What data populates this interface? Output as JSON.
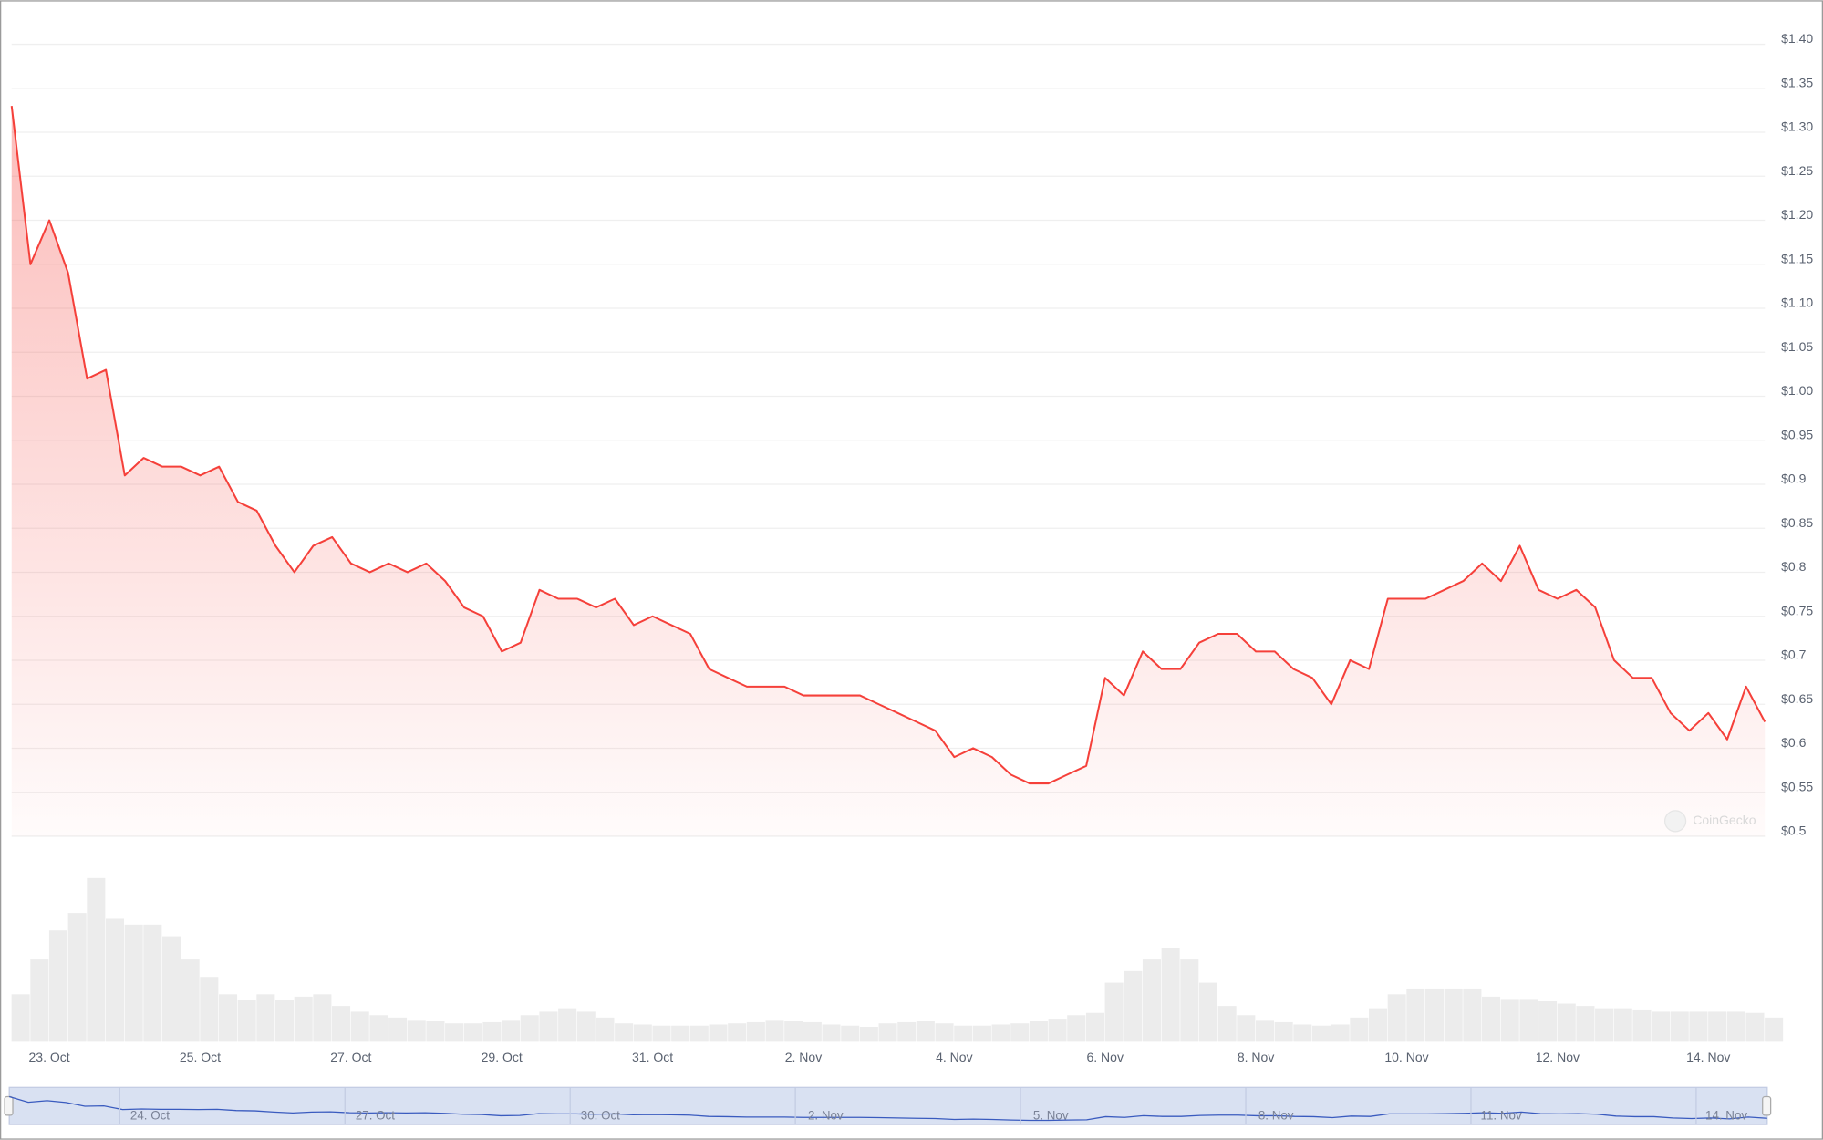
{
  "chart_data": {
    "type": "line",
    "color": "#f5403a",
    "volume_color": "#ececec",
    "navigator_color": "#3a5bbf",
    "watermark": "CoinGecko",
    "grid": true,
    "ylim": [
      0.5,
      1.45
    ],
    "yticks": [
      {
        "value": 1.4,
        "label": "$1.40"
      },
      {
        "value": 1.35,
        "label": "$1.35"
      },
      {
        "value": 1.3,
        "label": "$1.30"
      },
      {
        "value": 1.25,
        "label": "$1.25"
      },
      {
        "value": 1.2,
        "label": "$1.20"
      },
      {
        "value": 1.15,
        "label": "$1.15"
      },
      {
        "value": 1.1,
        "label": "$1.10"
      },
      {
        "value": 1.05,
        "label": "$1.05"
      },
      {
        "value": 1.0,
        "label": "$1.00"
      },
      {
        "value": 0.95,
        "label": "$0.95"
      },
      {
        "value": 0.9,
        "label": "$0.9"
      },
      {
        "value": 0.85,
        "label": "$0.85"
      },
      {
        "value": 0.8,
        "label": "$0.8"
      },
      {
        "value": 0.75,
        "label": "$0.75"
      },
      {
        "value": 0.7,
        "label": "$0.7"
      },
      {
        "value": 0.65,
        "label": "$0.65"
      },
      {
        "value": 0.6,
        "label": "$0.6"
      },
      {
        "value": 0.55,
        "label": "$0.55"
      },
      {
        "value": 0.5,
        "label": "$0.5"
      }
    ],
    "categories": [
      null,
      null,
      "23. Oct",
      null,
      null,
      null,
      null,
      null,
      null,
      null,
      "25. Oct",
      null,
      null,
      null,
      null,
      null,
      null,
      null,
      "27. Oct",
      null,
      null,
      null,
      null,
      null,
      null,
      null,
      "29. Oct",
      null,
      null,
      null,
      null,
      null,
      null,
      null,
      "31. Oct",
      null,
      null,
      null,
      null,
      null,
      null,
      null,
      "2. Nov",
      null,
      null,
      null,
      null,
      null,
      null,
      null,
      "4. Nov",
      null,
      null,
      null,
      null,
      null,
      null,
      null,
      "6. Nov",
      null,
      null,
      null,
      null,
      null,
      null,
      null,
      "8. Nov",
      null,
      null,
      null,
      null,
      null,
      null,
      null,
      "10. Nov",
      null,
      null,
      null,
      null,
      null,
      null,
      null,
      "12. Nov",
      null,
      null,
      null,
      null,
      null,
      null,
      null,
      "14. Nov",
      null,
      null,
      null
    ],
    "values": [
      1.33,
      1.15,
      1.2,
      1.14,
      1.02,
      1.03,
      0.91,
      0.93,
      0.92,
      0.92,
      0.91,
      0.92,
      0.88,
      0.87,
      0.83,
      0.8,
      0.83,
      0.84,
      0.81,
      0.8,
      0.81,
      0.8,
      0.81,
      0.79,
      0.76,
      0.75,
      0.71,
      0.72,
      0.78,
      0.77,
      0.77,
      0.76,
      0.77,
      0.74,
      0.75,
      0.74,
      0.73,
      0.69,
      0.68,
      0.67,
      0.67,
      0.67,
      0.66,
      0.66,
      0.66,
      0.66,
      0.65,
      0.64,
      0.63,
      0.62,
      0.59,
      0.6,
      0.59,
      0.57,
      0.56,
      0.56,
      0.57,
      0.58,
      0.68,
      0.66,
      0.71,
      0.69,
      0.69,
      0.72,
      0.73,
      0.73,
      0.71,
      0.71,
      0.69,
      0.68,
      0.65,
      0.7,
      0.69,
      0.77,
      0.77,
      0.77,
      0.78,
      0.79,
      0.81,
      0.79,
      0.83,
      0.78,
      0.77,
      0.78,
      0.76,
      0.7,
      0.68,
      0.68,
      0.64,
      0.62,
      0.64,
      0.61,
      0.67,
      0.63
    ],
    "volumes": [
      40,
      70,
      95,
      110,
      140,
      105,
      100,
      100,
      90,
      70,
      55,
      40,
      35,
      40,
      35,
      38,
      40,
      30,
      25,
      22,
      20,
      18,
      17,
      15,
      15,
      16,
      18,
      22,
      25,
      28,
      25,
      20,
      15,
      14,
      13,
      13,
      13,
      14,
      15,
      16,
      18,
      17,
      16,
      14,
      13,
      12,
      15,
      16,
      17,
      15,
      13,
      13,
      14,
      15,
      17,
      19,
      22,
      24,
      50,
      60,
      70,
      80,
      70,
      50,
      30,
      22,
      18,
      16,
      14,
      13,
      14,
      20,
      28,
      40,
      45,
      45,
      45,
      45,
      38,
      36,
      36,
      34,
      32,
      30,
      28,
      28,
      27,
      25,
      25,
      25,
      25,
      25,
      24,
      20
    ],
    "navigator_labels": [
      "24. Oct",
      "27. Oct",
      "30. Oct",
      "2. Nov",
      "5. Nov",
      "8. Nov",
      "11. Nov",
      "14. Nov"
    ]
  }
}
